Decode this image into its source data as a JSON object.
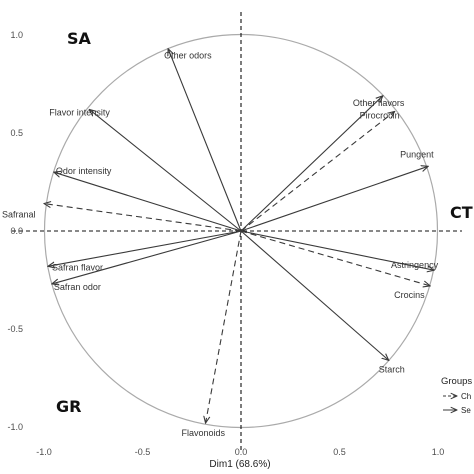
{
  "chart_data": {
    "type": "scatter",
    "subtype": "pca-correlation-circle",
    "xlabel": "Dim1 (68.6%)",
    "ylabel": "",
    "xlim": [
      -1.0,
      1.0
    ],
    "ylim": [
      -1.0,
      1.0
    ],
    "x_ticks": [
      "-1.0",
      "-0.5",
      "0.0",
      "0.5",
      "1.0"
    ],
    "y_ticks": [
      "1.0",
      "0.5",
      "0.0",
      "-0.5",
      "-1.0"
    ],
    "x_tick_values": [
      -1.0,
      -0.5,
      0.0,
      0.5,
      1.0
    ],
    "y_tick_values": [
      1.0,
      0.5,
      0.0,
      -0.5,
      -1.0
    ],
    "grid": false,
    "circle_radius": 1.0,
    "group_labels": [
      "SA",
      "CT",
      "GR"
    ],
    "legend": {
      "title": "Groups",
      "placement": "bottom-right",
      "entries": [
        {
          "label": "Ch",
          "style": "dashed"
        },
        {
          "label": "Se",
          "style": "solid"
        }
      ]
    },
    "series": [
      {
        "name": "Ch",
        "style": "dashed",
        "points": [
          {
            "label": "Pirocrocin",
            "x": 0.78,
            "y": 0.61
          },
          {
            "label": "Safranal",
            "x": -1.0,
            "y": 0.14
          },
          {
            "label": "Crocins",
            "x": 0.96,
            "y": -0.28
          },
          {
            "label": "Flavonoids",
            "x": -0.18,
            "y": -0.98
          }
        ]
      },
      {
        "name": "Se",
        "style": "solid",
        "points": [
          {
            "label": "Other odors",
            "x": -0.37,
            "y": 0.93
          },
          {
            "label": "Other flavors",
            "x": 0.72,
            "y": 0.69
          },
          {
            "label": "Flavor intensity",
            "x": -0.77,
            "y": 0.62
          },
          {
            "label": "Pungent",
            "x": 0.95,
            "y": 0.33
          },
          {
            "label": "Odor intensity",
            "x": -0.95,
            "y": 0.3
          },
          {
            "label": "Safran flavor",
            "x": -0.98,
            "y": -0.18
          },
          {
            "label": "Safran odor",
            "x": -0.96,
            "y": -0.27
          },
          {
            "label": "Astringency",
            "x": 0.98,
            "y": -0.2
          },
          {
            "label": "Starch",
            "x": 0.75,
            "y": -0.66
          }
        ]
      }
    ]
  }
}
